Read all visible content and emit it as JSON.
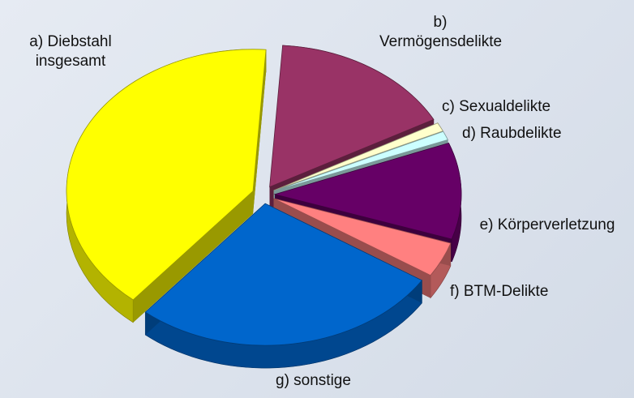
{
  "chart_data": {
    "type": "pie",
    "categories": [
      "a) Diebstahl insgesamt",
      "b) Vermögensdelikte",
      "c) Sexualdelikte",
      "d) Raubdelikte",
      "e) Körperverletzung",
      "f)  BTM-Delikte",
      "g) sonstige"
    ],
    "values": [
      40,
      16,
      1,
      1,
      11,
      4,
      27
    ],
    "colors": [
      "#ffff00",
      "#993366",
      "#ffffcc",
      "#ccffff",
      "#660066",
      "#ff8080",
      "#0066cc"
    ]
  }
}
